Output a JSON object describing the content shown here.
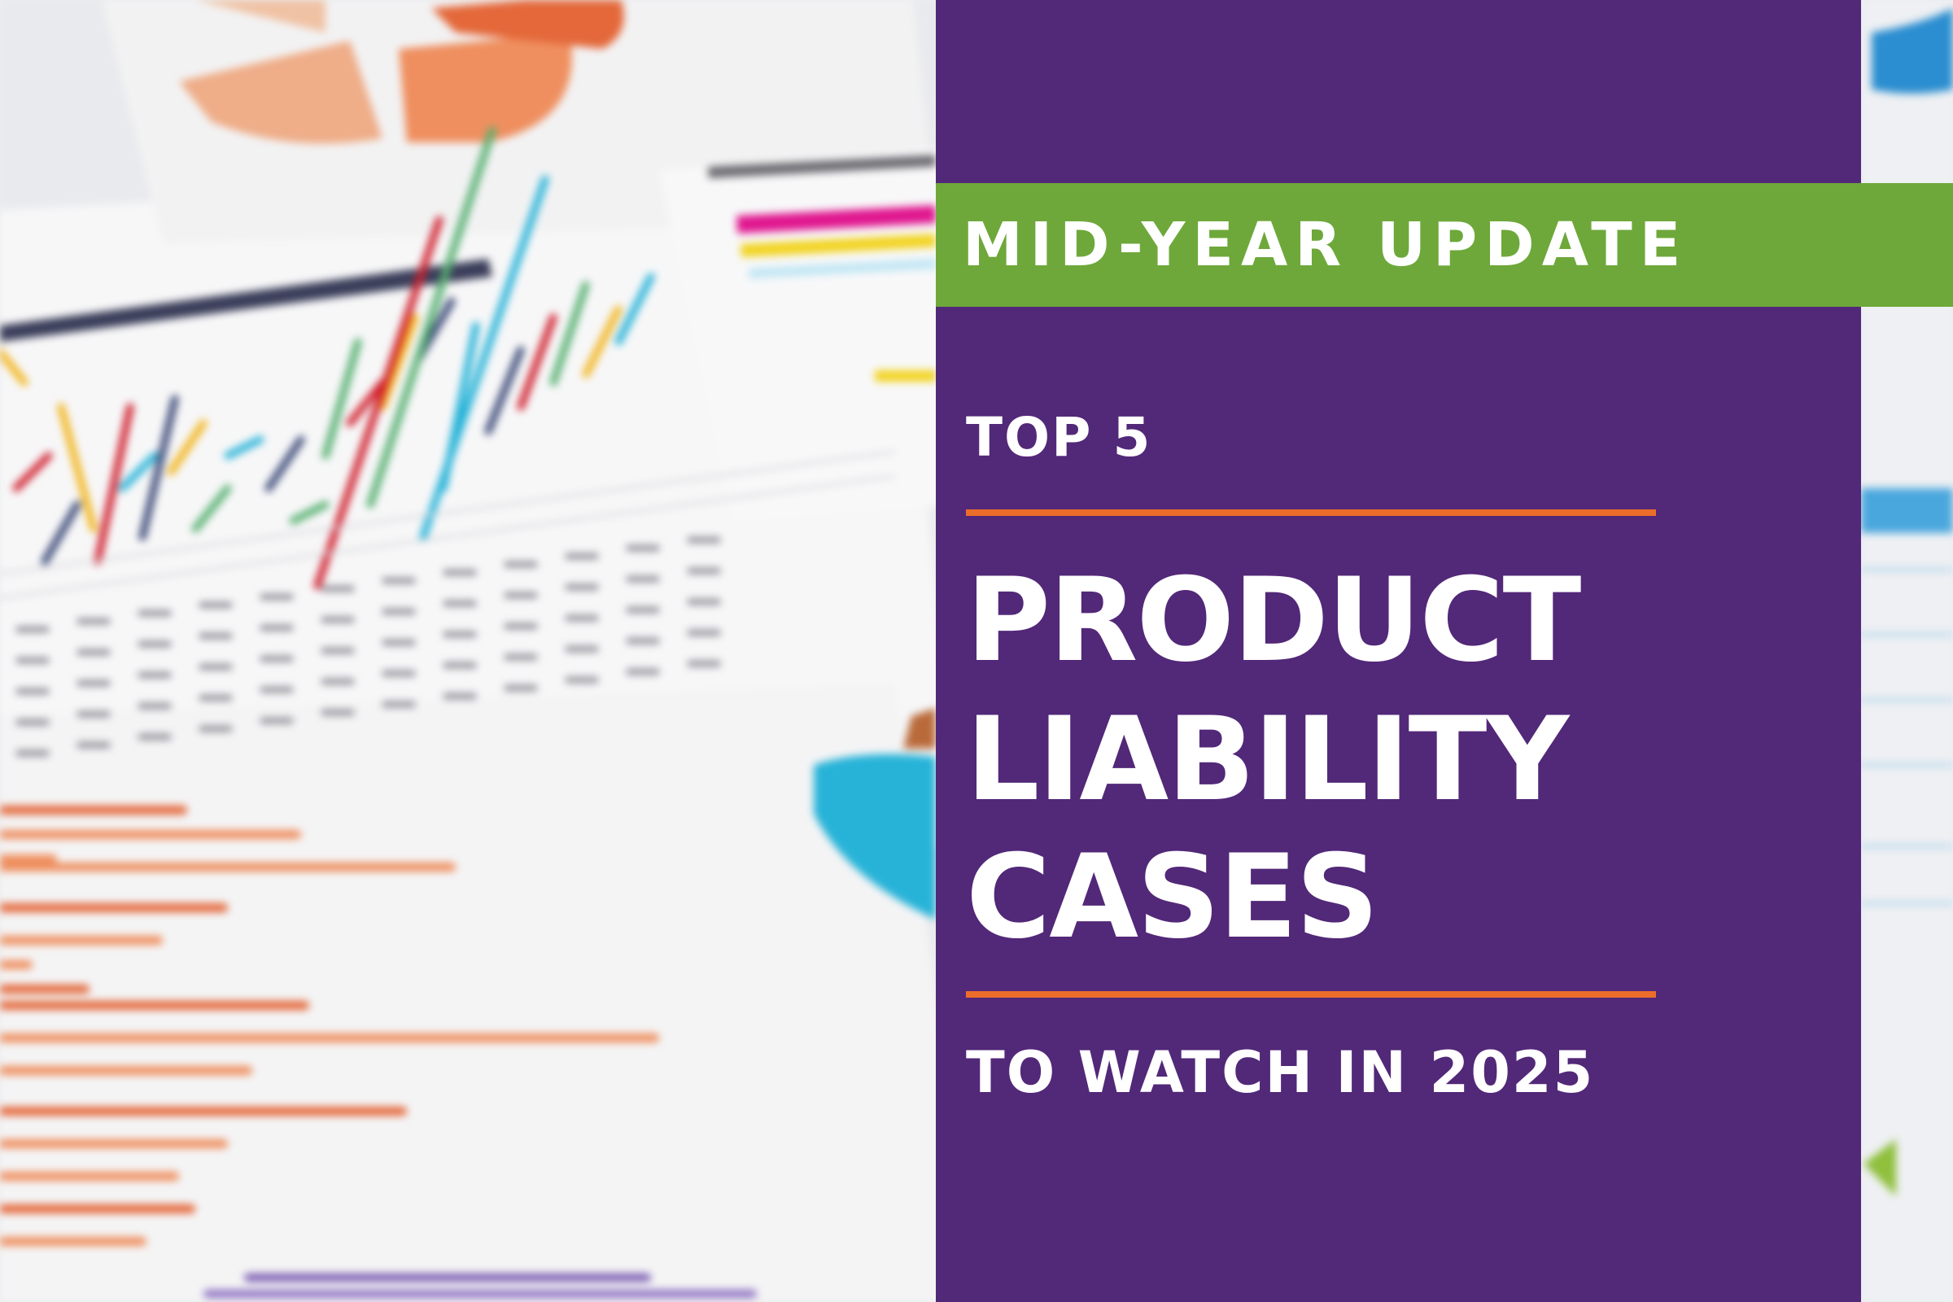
{
  "banner": {
    "label": "MID-YEAR UPDATE"
  },
  "headline": {
    "kicker": "TOP 5",
    "lines": [
      "PRODUCT",
      "LIABILITY",
      "CASES"
    ],
    "subtitle": "TO WATCH IN 2025"
  },
  "background": {
    "description_icon": "blurred-financial-charts-photo",
    "bar_colors": [
      "#d0202e",
      "#3c4a78",
      "#f2b51e",
      "#27b3d8",
      "#56b070"
    ],
    "orange_bar_color": "#ef8f5f"
  },
  "colors": {
    "panel": "#522878",
    "banner": "#6ea83a",
    "rule": "#ec6d2a",
    "text": "#ffffff"
  }
}
